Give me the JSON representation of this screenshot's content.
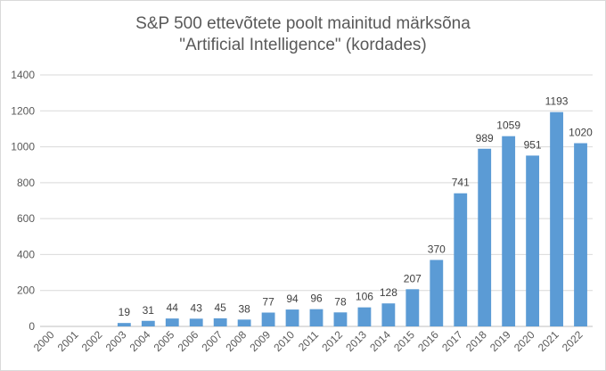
{
  "chart_data": {
    "type": "bar",
    "title_line1": "S&P 500 ettevõtete poolt mainitud märksõna",
    "title_line2": "\"Artificial Intelligence\" (kordades)",
    "categories": [
      "2000",
      "2001",
      "2002",
      "2003",
      "2004",
      "2005",
      "2006",
      "2007",
      "2008",
      "2009",
      "2010",
      "2011",
      "2012",
      "2013",
      "2014",
      "2015",
      "2016",
      "2017",
      "2018",
      "2019",
      "2020",
      "2021",
      "2022"
    ],
    "values": [
      0,
      0,
      0,
      19,
      31,
      44,
      43,
      45,
      38,
      77,
      94,
      96,
      78,
      106,
      128,
      207,
      370,
      741,
      989,
      1059,
      951,
      1193,
      1020
    ],
    "data_labels": [
      "",
      "",
      "",
      "19",
      "31",
      "44",
      "43",
      "45",
      "38",
      "77",
      "94",
      "96",
      "78",
      "106",
      "128",
      "207",
      "370",
      "741",
      "989",
      "1059",
      "951",
      "1193",
      "1020"
    ],
    "ylim": [
      0,
      1400
    ],
    "yticks": [
      0,
      200,
      400,
      600,
      800,
      1000,
      1200,
      1400
    ],
    "grid": true,
    "bar_color": "#5b9bd5"
  }
}
